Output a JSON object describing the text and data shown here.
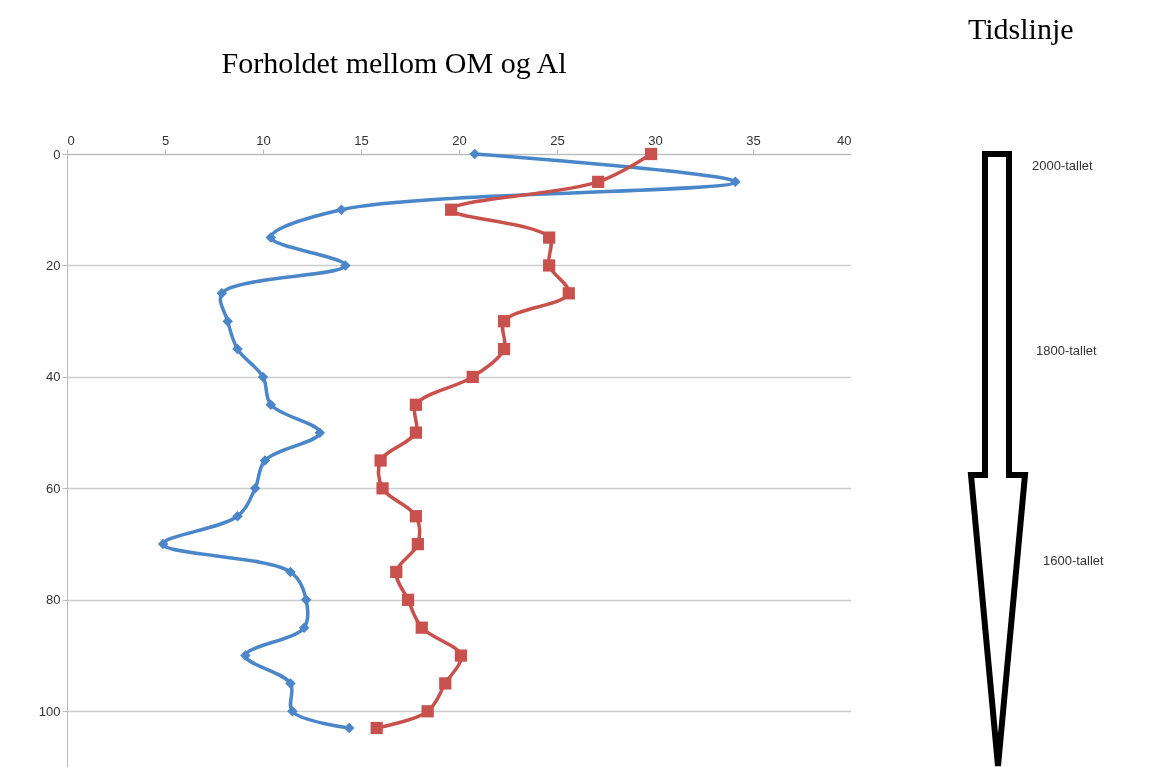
{
  "chart_data": {
    "type": "line",
    "title": "Forholdet mellom OM og Al",
    "xlim": [
      0,
      40
    ],
    "xticks": [
      0,
      5,
      10,
      15,
      20,
      25,
      30,
      35,
      40
    ],
    "ylim": [
      110,
      0
    ],
    "yticks": [
      0,
      20,
      40,
      60,
      80,
      100
    ],
    "grid": "y",
    "series": [
      {
        "color": "#4a86c8",
        "marker": "diamond",
        "x": [
          20.8,
          34.1,
          14.0,
          10.4,
          14.2,
          7.9,
          8.2,
          8.7,
          10.0,
          10.4,
          12.9,
          10.1,
          9.6,
          8.7,
          4.9,
          11.4,
          12.2,
          12.1,
          9.1,
          11.4,
          11.5,
          14.4
        ],
        "values": [
          0,
          5,
          10,
          15,
          20,
          25,
          30,
          35,
          40,
          45,
          50,
          55,
          60,
          65,
          70,
          75,
          80,
          85,
          90,
          95,
          100,
          103
        ]
      },
      {
        "color": "#c9514d",
        "marker": "square",
        "x": [
          29.8,
          27.1,
          19.6,
          24.6,
          24.6,
          25.6,
          22.3,
          22.3,
          20.7,
          17.8,
          17.8,
          16.0,
          16.1,
          17.8,
          17.9,
          16.8,
          17.4,
          18.1,
          20.1,
          19.3,
          18.4,
          15.8
        ],
        "values": [
          0,
          5,
          10,
          15,
          20,
          25,
          30,
          35,
          40,
          45,
          50,
          55,
          60,
          65,
          70,
          75,
          80,
          85,
          90,
          95,
          100,
          103
        ]
      }
    ],
    "annotations": [
      "Tidslinje",
      "2000-tallet",
      "1800-tallet",
      "1600-tallet"
    ]
  }
}
